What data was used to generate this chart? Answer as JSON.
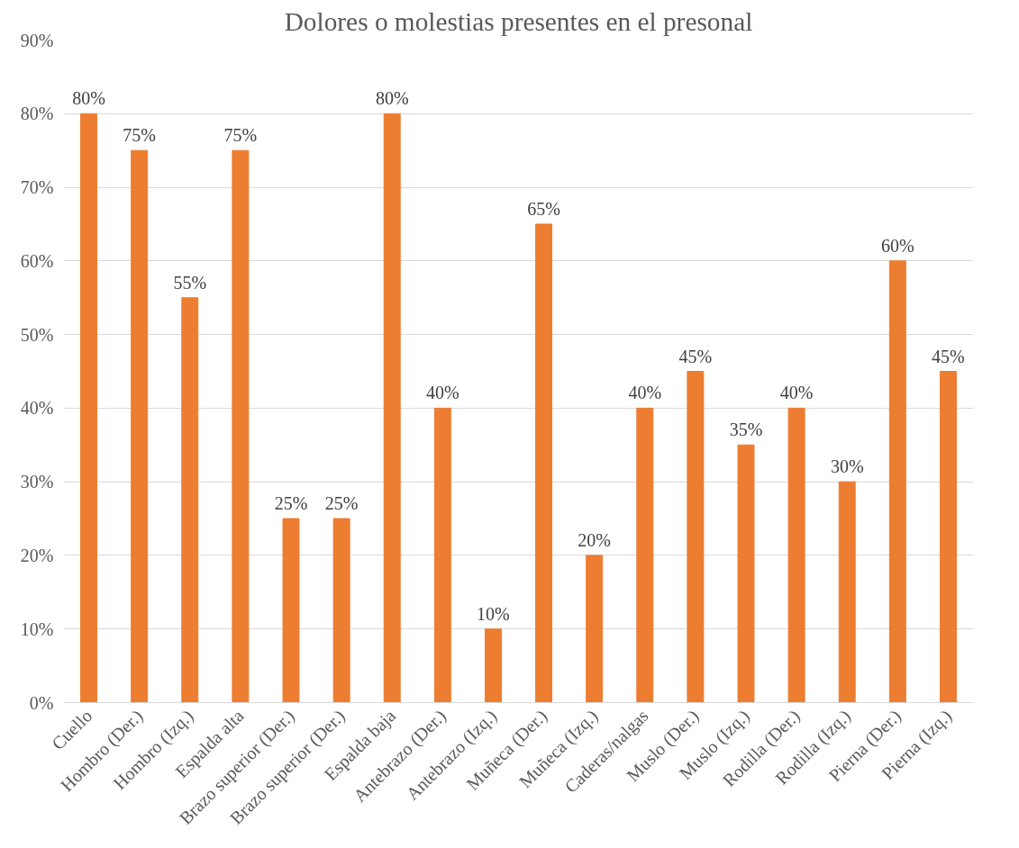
{
  "chart_data": {
    "type": "bar",
    "title": "Dolores o molestias presentes en el presonal",
    "categories": [
      "Cuello",
      "Hombro (Der.)",
      "Hombro (Izq.)",
      "Espalda alta",
      "Brazo superior (Der.)",
      "Brazo superior (Der.)",
      "Espalda baja",
      "Antebrazo (Der.)",
      "Antebrazo (Izq.)",
      "Muñeca (Der.)",
      "Muñeca (Izq.)",
      "Caderas/nalgas",
      "Muslo (Der.)",
      "Muslo (Izq.)",
      "Rodilla (Der.)",
      "Rodilla (Izq.)",
      "Pierna (Der.)",
      "Pierna (Izq.)"
    ],
    "values": [
      80,
      75,
      55,
      75,
      25,
      25,
      80,
      40,
      10,
      65,
      20,
      40,
      45,
      35,
      40,
      30,
      60,
      45
    ],
    "value_labels": [
      "80%",
      "75%",
      "55%",
      "75%",
      "25%",
      "25%",
      "80%",
      "40%",
      "10%",
      "65%",
      "20%",
      "40%",
      "45%",
      "35%",
      "40%",
      "30%",
      "60%",
      "45%"
    ],
    "color": "#ed7d31",
    "ylim": [
      0,
      90
    ],
    "yticks": [
      {
        "value": 0,
        "label": "0%"
      },
      {
        "value": 10,
        "label": "10%"
      },
      {
        "value": 20,
        "label": "20%"
      },
      {
        "value": 30,
        "label": "30%"
      },
      {
        "value": 40,
        "label": "40%"
      },
      {
        "value": 50,
        "label": "50%"
      },
      {
        "value": 60,
        "label": "60%"
      },
      {
        "value": 70,
        "label": "70%"
      },
      {
        "value": 80,
        "label": "80%"
      },
      {
        "value": 90,
        "label": "90%"
      }
    ],
    "grid": "y"
  }
}
